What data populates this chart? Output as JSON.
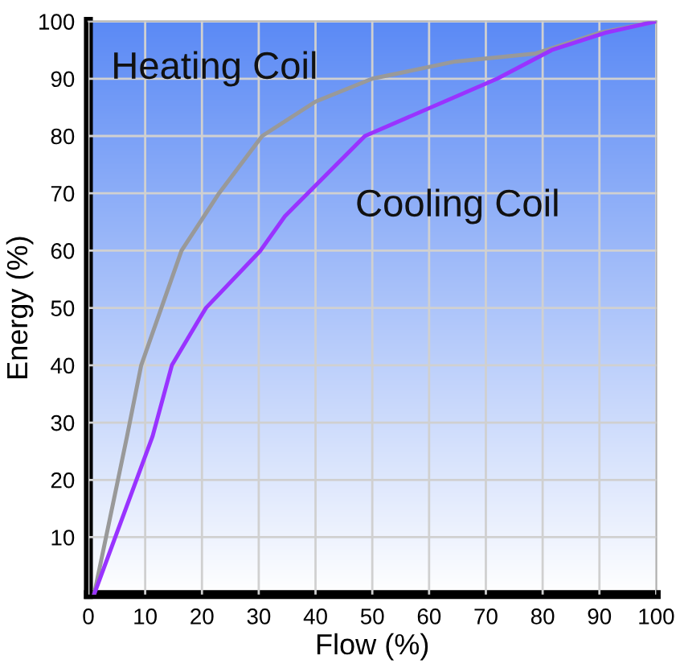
{
  "chart_data": {
    "type": "line",
    "xlabel": "Flow (%)",
    "ylabel": "Energy (%)",
    "xlim": [
      0,
      100
    ],
    "ylim": [
      0,
      100
    ],
    "xticks": [
      0,
      10,
      20,
      30,
      40,
      50,
      60,
      70,
      80,
      90,
      100
    ],
    "yticks": [
      10,
      20,
      30,
      40,
      50,
      60,
      70,
      80,
      90,
      100
    ],
    "grid": true,
    "legend": false,
    "marker": "none",
    "line_style": "solid",
    "series": [
      {
        "name": "Heating Coil",
        "color": "#999999",
        "x": [
          1,
          6.8,
          9.3,
          16.4,
          23,
          30.6,
          40,
          50,
          64.6,
          78.8,
          90,
          100
        ],
        "values": [
          0,
          27.6,
          40,
          60,
          70,
          80,
          86,
          90,
          93,
          94.4,
          98,
          100
        ]
      },
      {
        "name": "Cooling Coil",
        "color": "#9933ff",
        "x": [
          1,
          11.3,
          14.7,
          20.7,
          30.3,
          34.6,
          48.7,
          72,
          81.6,
          91,
          100
        ],
        "values": [
          0,
          27.6,
          40,
          50,
          60,
          66,
          80,
          90,
          95,
          98,
          100
        ]
      }
    ]
  }
}
